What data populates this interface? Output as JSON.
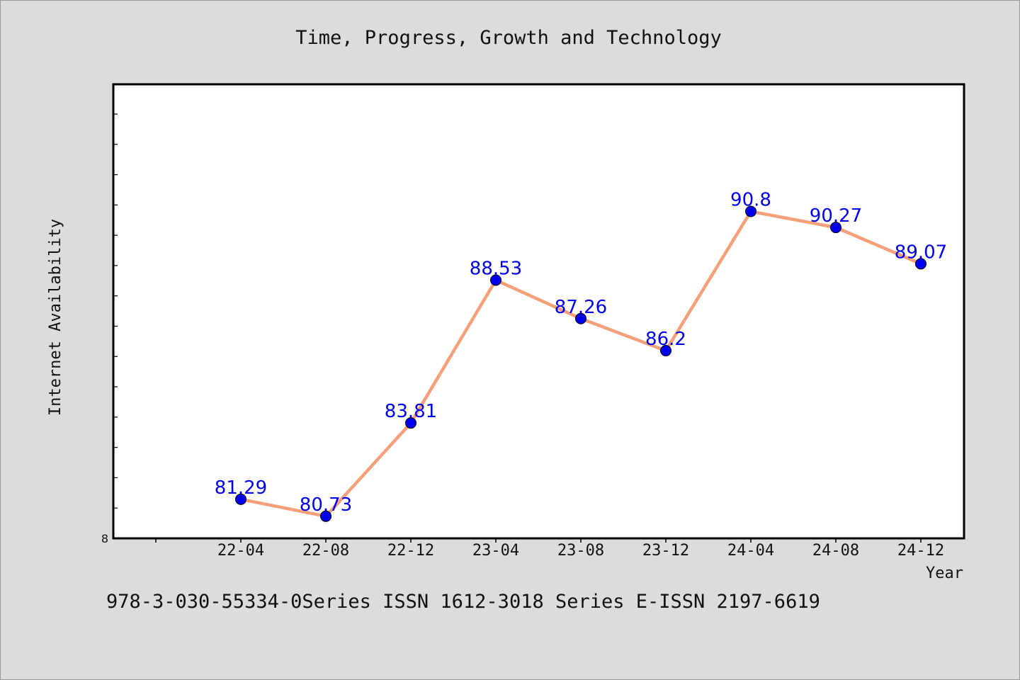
{
  "chart_data": {
    "type": "line",
    "title": "Time, Progress, Growth and Technology",
    "xlabel": "Year",
    "ylabel": "Internet Availability",
    "categories": [
      "22-04",
      "22-08",
      "22-12",
      "23-04",
      "23-08",
      "23-12",
      "24-04",
      "24-08",
      "24-12"
    ],
    "series": [
      {
        "values": [
          81.29,
          80.73,
          83.81,
          88.53,
          87.26,
          86.2,
          90.8,
          90.27,
          89.07
        ]
      }
    ],
    "ylim": [
      80,
      95
    ],
    "y_tick_labels": [
      "8"
    ],
    "data_label_texts": [
      "81.29",
      "80.73",
      "83.81",
      "88.53",
      "87.26",
      "86.2",
      "90.8",
      "90.27",
      "89.07"
    ],
    "grid": false,
    "colors": {
      "line": "#f6a07a",
      "marker": "#0000ee",
      "label": "#0000ee",
      "background": "#dcdcdc",
      "plot_background": "#ffffff"
    }
  },
  "footer_note": "978-3-030-55334-0Series ISSN 1612-3018 Series E-ISSN 2197-6619"
}
